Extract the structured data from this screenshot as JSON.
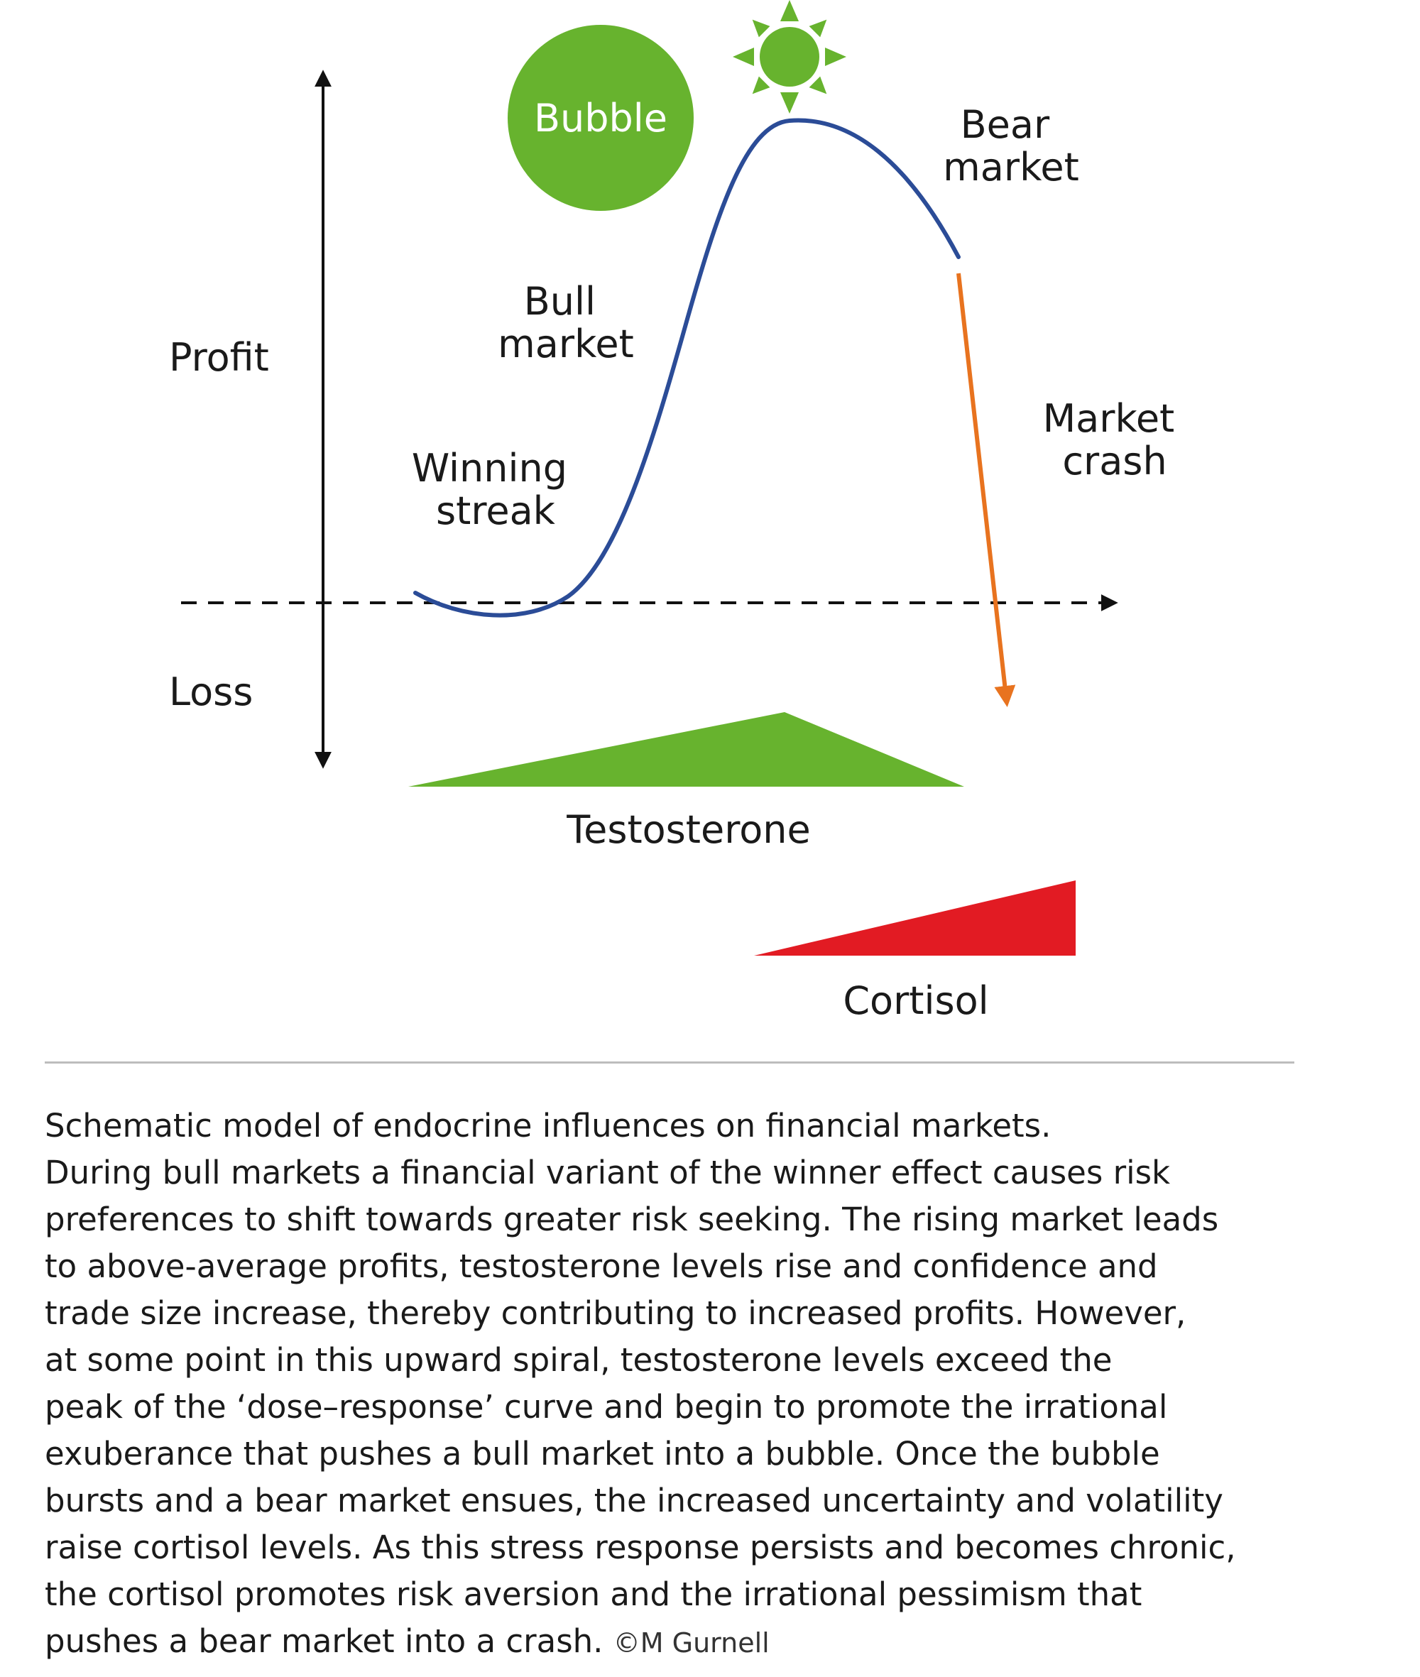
{
  "diagram": {
    "axis_labels": {
      "profit": "Profit",
      "loss": "Loss"
    },
    "bubble_label": "Bubble",
    "phase_labels": {
      "winning_streak": [
        "Winning",
        "streak"
      ],
      "bull_market": [
        "Bull",
        "market"
      ],
      "bear_market": [
        "Bear",
        "market"
      ],
      "market_crash": [
        "Market",
        "crash"
      ]
    },
    "hormones": {
      "testosterone": "Testosterone",
      "cortisol": "Cortisol"
    },
    "icons": [
      "sun-icon",
      "bubble-circle"
    ],
    "colors": {
      "market_curve": "#2b4c97",
      "crash_arrow": "#e8731f",
      "bubble": "#67b32e",
      "sun": "#67b32e",
      "testosterone": "#67b32e",
      "cortisol": "#e21b23",
      "axis": "#111111"
    }
  },
  "caption": {
    "lines": [
      "Schematic model of endocrine influences on financial markets.",
      "During bull markets a financial variant of the winner effect causes risk",
      "preferences to shift towards greater risk seeking. The rising market leads",
      "to above-average profits, testosterone levels rise and confidence and",
      "trade size increase, thereby contributing to increased profits. However,",
      "at some point in this upward spiral, testosterone levels exceed the",
      "peak of the ‘dose–response’ curve and begin to promote the irrational",
      "exuberance that pushes a bull market into a bubble. Once the bubble",
      "bursts and a bear market ensues, the increased uncertainty and volatility",
      "raise cortisol levels. As this stress response persists and becomes chronic,",
      "the cortisol promotes risk aversion and the irrational pessimism that",
      "pushes a bear market into a crash."
    ],
    "credit": "©M Gurnell"
  }
}
